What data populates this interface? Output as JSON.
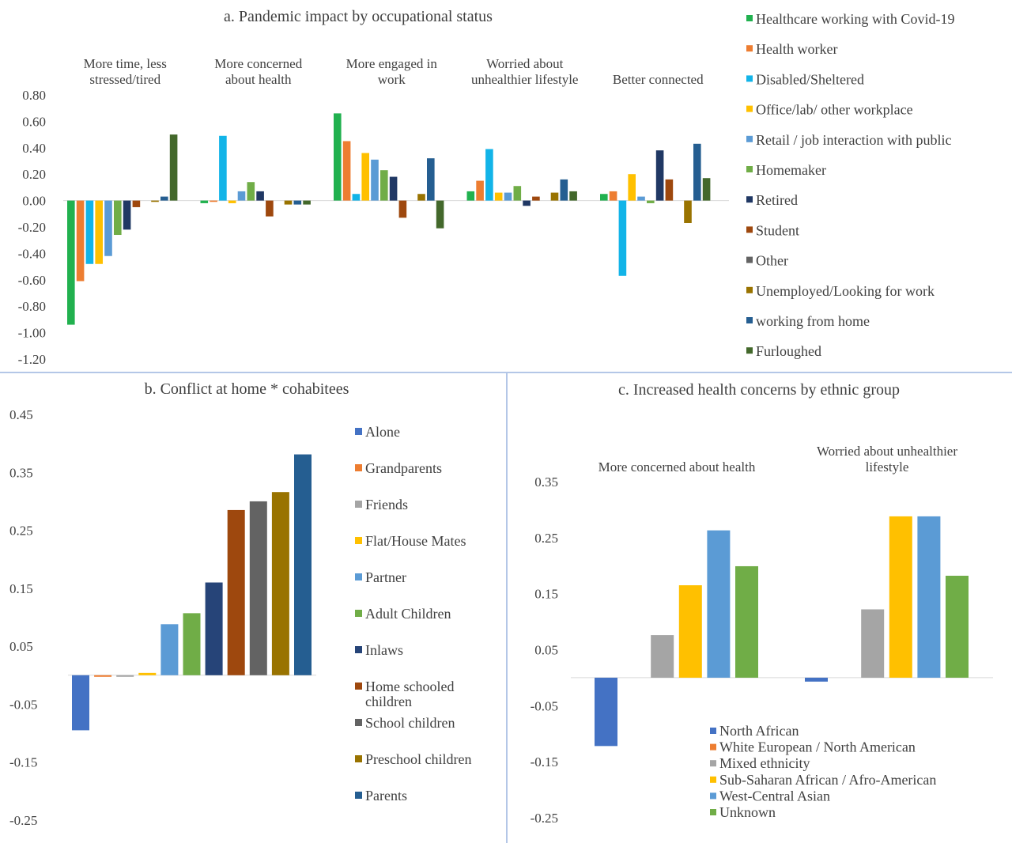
{
  "chart_data": [
    {
      "type": "bar",
      "title": "a. Pandemic impact by occupational status",
      "categories": [
        "More time, less stressed/tired",
        "More concerned about health",
        "More engaged in work",
        "Worried about unhealthier lifestyle",
        "Better connected"
      ],
      "ylim": [
        -1.2,
        0.8
      ],
      "yticks": [
        0.8,
        0.6,
        0.4,
        0.2,
        0.0,
        -0.2,
        -0.4,
        -0.6,
        -0.8,
        -1.0,
        -1.2
      ],
      "ytick_labels": [
        "0.80",
        "0.60",
        "0.40",
        "0.20",
        "0.00",
        "-0.20",
        "-0.40",
        "-0.60",
        "-0.80",
        "-1.00",
        "-1.20"
      ],
      "legend_position": "right",
      "series": [
        {
          "name": "Healthcare working with Covid-19",
          "color": "#21b14f",
          "values": [
            -0.94,
            -0.02,
            0.66,
            0.07,
            0.05
          ]
        },
        {
          "name": "Health worker",
          "color": "#ed7d31",
          "values": [
            -0.61,
            -0.01,
            0.45,
            0.15,
            0.07
          ]
        },
        {
          "name": "Disabled/Sheltered",
          "color": "#12b4e8",
          "values": [
            -0.48,
            0.49,
            0.05,
            0.39,
            -0.57
          ]
        },
        {
          "name": "Office/lab/ other workplace",
          "color": "#ffc000",
          "values": [
            -0.48,
            -0.02,
            0.36,
            0.06,
            0.2
          ]
        },
        {
          "name": "Retail / job interaction with public",
          "color": "#5b9bd5",
          "values": [
            -0.42,
            0.07,
            0.31,
            0.06,
            0.03
          ]
        },
        {
          "name": "Homemaker",
          "color": "#70ad47",
          "values": [
            -0.26,
            0.14,
            0.23,
            0.11,
            -0.02
          ]
        },
        {
          "name": "Retired",
          "color": "#203864",
          "values": [
            -0.22,
            0.07,
            0.18,
            -0.04,
            0.38
          ]
        },
        {
          "name": "Student",
          "color": "#9e480e",
          "values": [
            -0.05,
            -0.12,
            -0.13,
            0.03,
            0.16
          ]
        },
        {
          "name": "Other",
          "color": "#636363",
          "values": [
            0.0,
            0.0,
            0.0,
            0.0,
            0.0
          ]
        },
        {
          "name": "Unemployed/Looking for work",
          "color": "#997300",
          "values": [
            -0.01,
            -0.03,
            0.05,
            0.06,
            -0.17
          ]
        },
        {
          "name": "working from home",
          "color": "#255e91",
          "values": [
            0.03,
            -0.03,
            0.32,
            0.16,
            0.43
          ]
        },
        {
          "name": "Furloughed",
          "color": "#43682b",
          "values": [
            0.5,
            -0.03,
            -0.21,
            0.07,
            0.17
          ]
        }
      ]
    },
    {
      "type": "bar",
      "title": "b. Conflict at home * cohabitees",
      "ylim": [
        -0.25,
        0.45
      ],
      "yticks": [
        0.45,
        0.35,
        0.25,
        0.15,
        0.05,
        -0.05,
        -0.15,
        -0.25
      ],
      "ytick_labels": [
        "0.45",
        "0.35",
        "0.25",
        "0.15",
        "0.05",
        "-0.05",
        "-0.15",
        "-0.25"
      ],
      "legend_position": "right",
      "series": [
        {
          "name": "Alone",
          "color": "#4472c4",
          "values": [
            -0.095
          ]
        },
        {
          "name": "Grandparents",
          "color": "#ed7d31",
          "values": [
            -0.002
          ]
        },
        {
          "name": "Friends",
          "color": "#a5a5a5",
          "values": [
            -0.002
          ]
        },
        {
          "name": "Flat/House Mates",
          "color": "#ffc000",
          "values": [
            0.004
          ]
        },
        {
          "name": "Partner",
          "color": "#5b9bd5",
          "values": [
            0.088
          ]
        },
        {
          "name": "Adult Children",
          "color": "#70ad47",
          "values": [
            0.107
          ]
        },
        {
          "name": "Inlaws",
          "color": "#264478",
          "values": [
            0.16
          ]
        },
        {
          "name": "Home schooled children",
          "color": "#9e480e",
          "values": [
            0.285
          ]
        },
        {
          "name": "School children",
          "color": "#636363",
          "values": [
            0.3
          ]
        },
        {
          "name": "Preschool children",
          "color": "#997300",
          "values": [
            0.316
          ]
        },
        {
          "name": "Parents",
          "color": "#255e91",
          "values": [
            0.381
          ]
        }
      ]
    },
    {
      "type": "bar",
      "title": "c. Increased health concerns  by ethnic group",
      "categories": [
        "More concerned about health",
        "Worried about unhealthier lifestyle"
      ],
      "ylim": [
        -0.25,
        0.35
      ],
      "yticks": [
        0.35,
        0.25,
        0.15,
        0.05,
        -0.05,
        -0.15,
        -0.25
      ],
      "ytick_labels": [
        "0.35",
        "0.25",
        "0.15",
        "0.05",
        "-0.05",
        "-0.15",
        "-0.25"
      ],
      "legend_position": "bottom",
      "series": [
        {
          "name": "North African",
          "color": "#4472c4",
          "values": [
            -0.122,
            -0.007
          ]
        },
        {
          "name": "White European / North American",
          "color": "#ed7d31",
          "values": [
            0.0,
            0.0
          ]
        },
        {
          "name": "Mixed ethnicity",
          "color": "#a5a5a5",
          "values": [
            0.076,
            0.122
          ]
        },
        {
          "name": "Sub-Saharan African / Afro-American",
          "color": "#ffc000",
          "values": [
            0.165,
            0.288
          ]
        },
        {
          "name": "West-Central Asian",
          "color": "#5b9bd5",
          "values": [
            0.263,
            0.288
          ]
        },
        {
          "name": "Unknown",
          "color": "#70ad47",
          "values": [
            0.199,
            0.182
          ]
        }
      ]
    }
  ]
}
